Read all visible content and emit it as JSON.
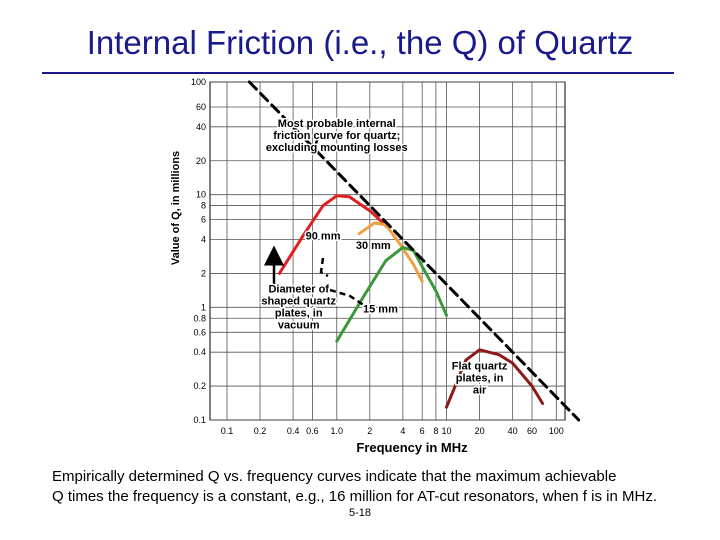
{
  "page": {
    "title": "Internal Friction (i.e., the Q) of Quartz",
    "caption_line1": "Empirically determined Q vs. frequency curves indicate that the maximum achievable",
    "caption_line2": "Q times the frequency is a constant, e.g., 16 million for AT-cut resonators, when f is in MHz.",
    "page_number": "5-18"
  },
  "chart_data": {
    "type": "line",
    "title": "",
    "xlabel": "Frequency in MHz",
    "ylabel": "Value of Q, in millions",
    "xscale": "log",
    "yscale": "log",
    "xlim": [
      0.07,
      120
    ],
    "ylim": [
      0.1,
      100
    ],
    "grid": true,
    "x_ticks": [
      {
        "v": 0.1,
        "label": "0.1"
      },
      {
        "v": 0.2,
        "label": "0.2"
      },
      {
        "v": 0.4,
        "label": "0.4"
      },
      {
        "v": 0.6,
        "label": "0.6"
      },
      {
        "v": 1,
        "label": "1.0"
      },
      {
        "v": 2,
        "label": "2"
      },
      {
        "v": 4,
        "label": "4"
      },
      {
        "v": 6,
        "label": "6"
      },
      {
        "v": 8,
        "label": "8"
      },
      {
        "v": 10,
        "label": "10"
      },
      {
        "v": 20,
        "label": "20"
      },
      {
        "v": 40,
        "label": "40"
      },
      {
        "v": 60,
        "label": "60"
      },
      {
        "v": 100,
        "label": "100"
      }
    ],
    "y_ticks": [
      {
        "v": 0.1,
        "label": "0.1"
      },
      {
        "v": 0.2,
        "label": "0.2"
      },
      {
        "v": 0.4,
        "label": "0.4"
      },
      {
        "v": 0.6,
        "label": "0.6"
      },
      {
        "v": 0.8,
        "label": "0.8"
      },
      {
        "v": 1,
        "label": "1"
      },
      {
        "v": 2,
        "label": "2"
      },
      {
        "v": 4,
        "label": "4"
      },
      {
        "v": 6,
        "label": "6"
      },
      {
        "v": 8,
        "label": "8"
      },
      {
        "v": 10,
        "label": "10"
      },
      {
        "v": 20,
        "label": "20"
      },
      {
        "v": 40,
        "label": "40"
      },
      {
        "v": 60,
        "label": "60"
      },
      {
        "v": 100,
        "label": "100"
      }
    ],
    "series": [
      {
        "color": "#e02020",
        "style": "solid",
        "points": [
          [
            0.3,
            2.0
          ],
          [
            0.5,
            4.4
          ],
          [
            0.75,
            8.0
          ],
          [
            1.0,
            9.8
          ],
          [
            1.3,
            9.6
          ],
          [
            2.0,
            7.2
          ],
          [
            3.0,
            5.0
          ]
        ]
      },
      {
        "color": "#f0a040",
        "style": "solid",
        "points": [
          [
            1.6,
            4.5
          ],
          [
            2.2,
            5.6
          ],
          [
            2.8,
            5.4
          ],
          [
            3.8,
            3.6
          ],
          [
            5.0,
            2.4
          ],
          [
            6.0,
            1.7
          ]
        ]
      },
      {
        "color": "#3a9a3a",
        "style": "solid",
        "points": [
          [
            1.0,
            0.5
          ],
          [
            1.8,
            1.3
          ],
          [
            2.8,
            2.6
          ],
          [
            4.0,
            3.4
          ],
          [
            5.0,
            3.2
          ],
          [
            6.0,
            2.3
          ],
          [
            8.0,
            1.4
          ],
          [
            10.0,
            0.85
          ]
        ]
      },
      {
        "color": "#8b1a1a",
        "style": "solid",
        "points": [
          [
            10.0,
            0.13
          ],
          [
            12.0,
            0.2
          ],
          [
            15.0,
            0.34
          ],
          [
            20.0,
            0.42
          ],
          [
            30.0,
            0.38
          ],
          [
            40.0,
            0.32
          ],
          [
            60.0,
            0.2
          ],
          [
            75.0,
            0.14
          ]
        ]
      },
      {
        "color": "#000000",
        "style": "dashed",
        "name": "",
        "points": [
          [
            0.16,
            100
          ],
          [
            1.6,
            10
          ],
          [
            16,
            1
          ],
          [
            160,
            0.1
          ]
        ]
      }
    ],
    "annotations": [
      {
        "lines": [
          "Most probable internal",
          "friction curve for quartz;",
          "excluding mounting losses"
        ],
        "x": 1.0,
        "y": 40
      },
      {
        "lines": [
          "90 mm"
        ],
        "x": 0.75,
        "y": 4.0
      },
      {
        "lines": [
          "30 mm"
        ],
        "x": 2.15,
        "y": 3.3
      },
      {
        "lines": [
          "15 mm"
        ],
        "x": 2.5,
        "y": 0.9
      },
      {
        "lines": [
          "Diameter of",
          "shaped quartz",
          "plates, in",
          "vacuum"
        ],
        "x": 0.45,
        "y": 1.35
      },
      {
        "lines": [
          "Flat quartz",
          "plates, in",
          "air"
        ],
        "x": 20,
        "y": 0.28
      }
    ]
  }
}
